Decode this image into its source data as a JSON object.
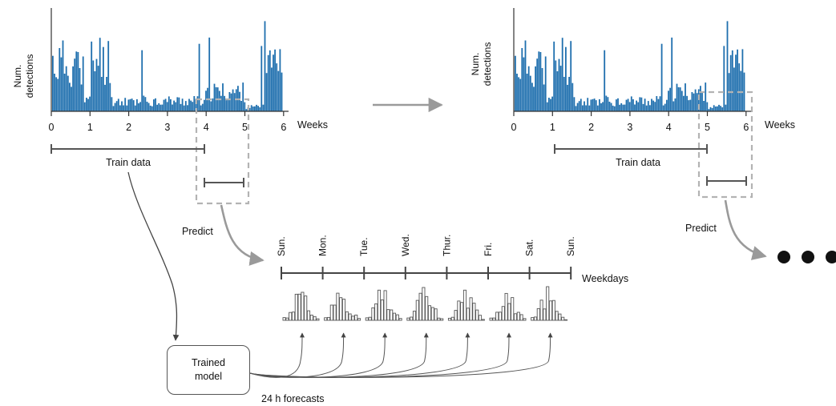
{
  "colors": {
    "bars": "#1f6fae",
    "axis": "#333333",
    "dashed": "#b3b3b3",
    "arrow_gray": "#9a9a9a",
    "day_bar": "#555555"
  },
  "panel_left": {
    "ylabel_line1": "Num.",
    "ylabel_line2": "detections",
    "ticks": [
      "0",
      "1",
      "2",
      "3",
      "4",
      "5",
      "6"
    ],
    "xunit": "Weeks",
    "train_label": "Train data",
    "predict_label": "Predict"
  },
  "panel_right": {
    "ylabel_line1": "Num.",
    "ylabel_line2": "detections",
    "ticks": [
      "0",
      "1",
      "2",
      "3",
      "4",
      "5",
      "6"
    ],
    "xunit": "Weeks",
    "train_label": "Train data",
    "predict_label": "Predict"
  },
  "weekdays": {
    "labels": [
      "Sun.",
      "Mon.",
      "Tue.",
      "Wed.",
      "Thur.",
      "Fri.",
      "Sat.",
      "Sun."
    ],
    "unit": "Weekdays"
  },
  "model": {
    "line1": "Trained",
    "line2": "model"
  },
  "forecasts_label": "24 h forecasts",
  "ellipsis_icon": "three-dots-icon"
}
